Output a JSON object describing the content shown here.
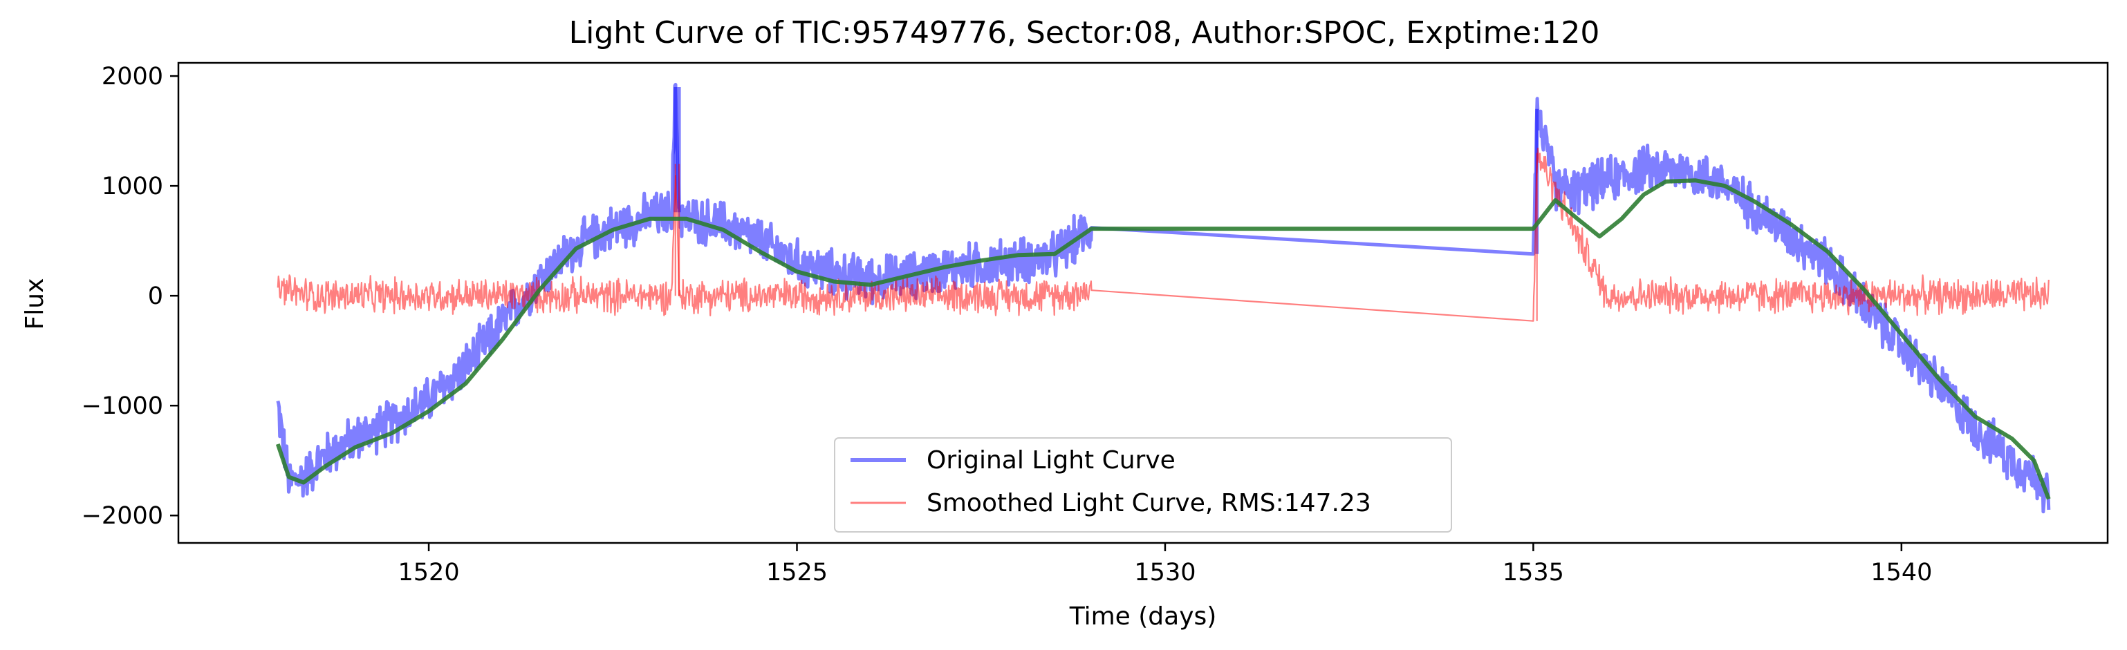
{
  "chart_data": {
    "type": "line",
    "title": "Light Curve of TIC:95749776, Sector:08, Author:SPOC, Exptime:120",
    "xlabel": "Time (days)",
    "ylabel": "Flux",
    "xlim": [
      1516.6,
      1542.8
    ],
    "ylim": [
      -2250,
      2120
    ],
    "x_ticks": [
      1520,
      1525,
      1530,
      1535,
      1540
    ],
    "y_ticks": [
      -2000,
      -1000,
      0,
      1000,
      2000
    ],
    "y_tick_labels": [
      "−2000",
      "−1000",
      "0",
      "1000",
      "2000"
    ],
    "grid": false,
    "legend_position": "lower center",
    "series": [
      {
        "name": "Original Light Curve",
        "color": "#0000ff",
        "opacity": 0.5,
        "x": [
          1517.95,
          1518.1,
          1518.3,
          1518.6,
          1519.0,
          1519.5,
          1520.0,
          1520.5,
          1521.0,
          1521.5,
          1522.0,
          1522.5,
          1523.0,
          1523.3,
          1523.35,
          1523.4,
          1523.5,
          1524.0,
          1524.5,
          1525.0,
          1525.5,
          1526.0,
          1526.5,
          1527.0,
          1527.5,
          1528.0,
          1528.5,
          1529.0,
          1535.0,
          1535.05,
          1535.3,
          1535.6,
          1536.0,
          1536.5,
          1537.0,
          1537.5,
          1538.0,
          1538.5,
          1539.0,
          1539.5,
          1540.0,
          1540.5,
          1541.0,
          1541.5,
          1541.9,
          1542.0
        ],
        "y": [
          -1000,
          -1700,
          -1650,
          -1450,
          -1300,
          -1150,
          -950,
          -650,
          -250,
          150,
          450,
          620,
          720,
          760,
          1900,
          760,
          700,
          650,
          500,
          300,
          200,
          150,
          180,
          240,
          280,
          320,
          360,
          620,
          380,
          1700,
          1000,
          950,
          1050,
          1150,
          1150,
          1050,
          800,
          550,
          300,
          -100,
          -450,
          -800,
          -1200,
          -1500,
          -1700,
          -1850
        ],
        "noise_amplitude": 250
      },
      {
        "name": "Smoothed Light Curve, RMS:147.23",
        "color": "#ff0000",
        "opacity": 0.5,
        "x": [
          1517.95,
          1518.5,
          1519.5,
          1520.5,
          1521.5,
          1522.5,
          1523.3,
          1523.35,
          1523.4,
          1524.5,
          1525.5,
          1526.5,
          1527.5,
          1528.5,
          1529.0,
          1535.0,
          1535.05,
          1536.0,
          1537.0,
          1538.0,
          1539.0,
          1540.0,
          1541.0,
          1542.0
        ],
        "y": [
          50,
          0,
          0,
          0,
          0,
          0,
          0,
          1200,
          0,
          0,
          0,
          0,
          0,
          0,
          50,
          -230,
          1300,
          0,
          0,
          0,
          0,
          0,
          0,
          0
        ],
        "noise_amplitude": 190
      },
      {
        "name": "",
        "color": "#2e7d32",
        "opacity": 0.9,
        "x": [
          1517.95,
          1518.1,
          1518.3,
          1518.6,
          1519.0,
          1519.5,
          1520.0,
          1520.5,
          1521.0,
          1521.5,
          1522.0,
          1522.5,
          1523.0,
          1523.5,
          1524.0,
          1524.5,
          1525.0,
          1525.5,
          1526.0,
          1526.5,
          1527.0,
          1527.5,
          1528.0,
          1528.5,
          1529.0,
          1535.0,
          1535.3,
          1535.6,
          1535.9,
          1536.2,
          1536.5,
          1536.8,
          1537.2,
          1537.6,
          1538.0,
          1538.5,
          1539.0,
          1539.5,
          1540.0,
          1540.5,
          1541.0,
          1541.5,
          1541.8,
          1542.0
        ],
        "y": [
          -1350,
          -1650,
          -1700,
          -1550,
          -1380,
          -1250,
          -1050,
          -800,
          -400,
          50,
          430,
          600,
          700,
          700,
          600,
          400,
          220,
          130,
          100,
          180,
          260,
          320,
          370,
          380,
          610,
          610,
          870,
          700,
          540,
          700,
          920,
          1040,
          1050,
          1000,
          860,
          650,
          400,
          50,
          -350,
          -750,
          -1100,
          -1300,
          -1500,
          -1850
        ]
      }
    ]
  }
}
